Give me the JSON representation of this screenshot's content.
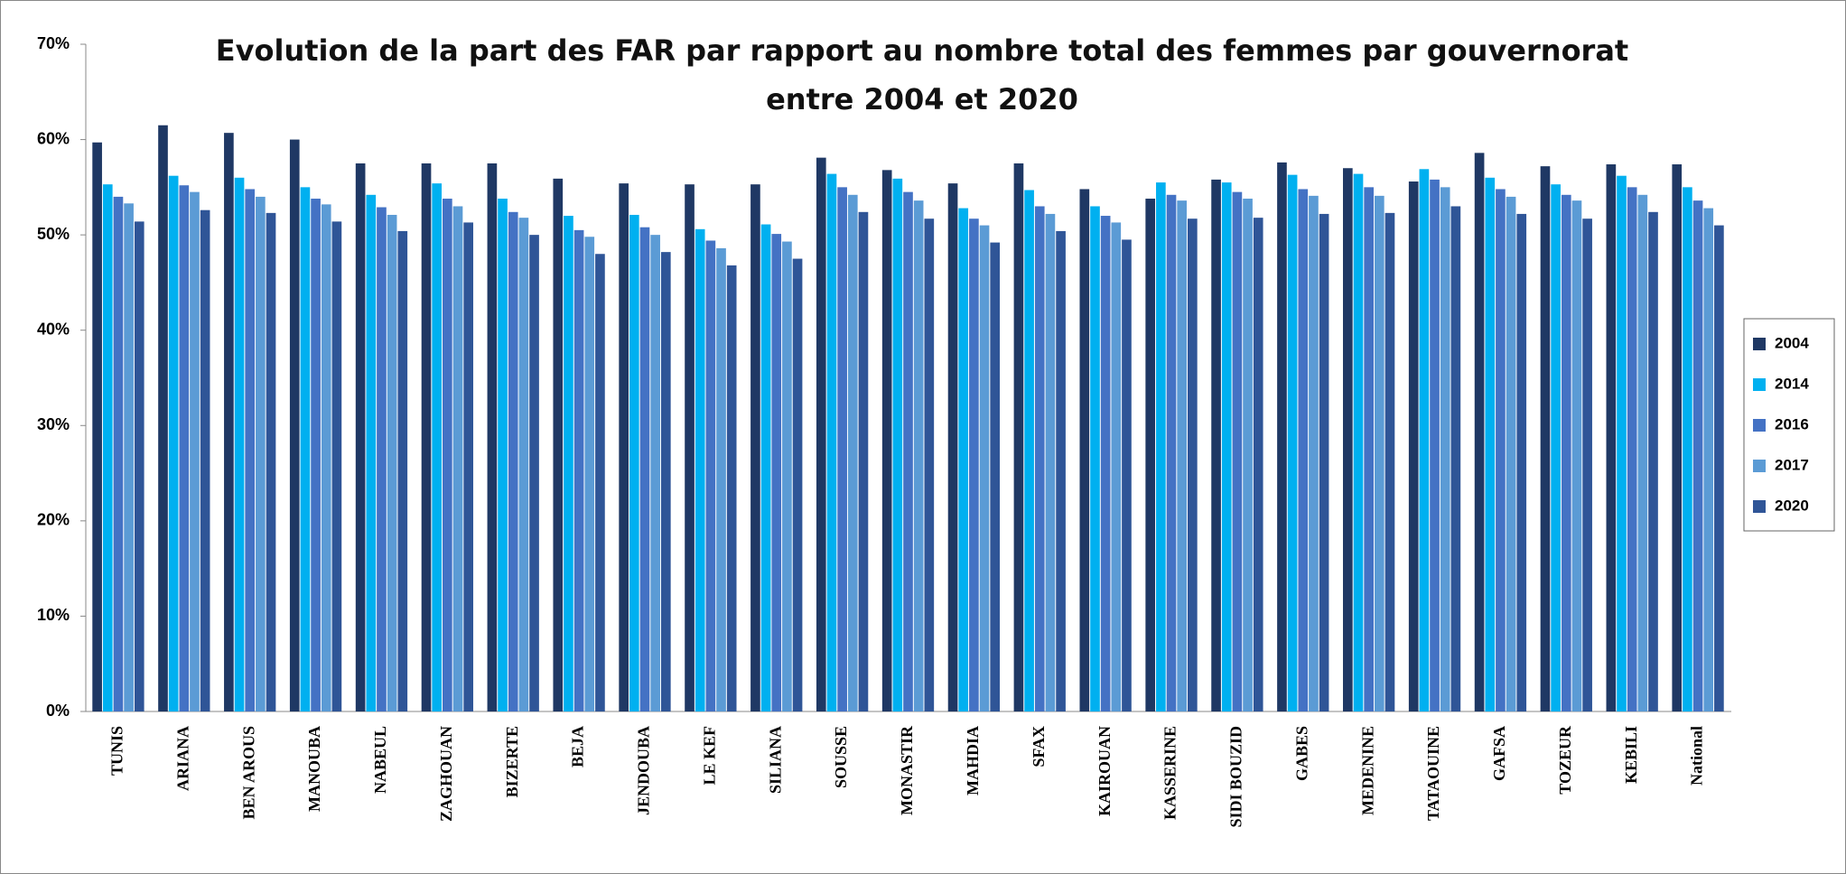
{
  "chart_data": {
    "type": "bar",
    "title": "Evolution de la part des FAR par rapport au nombre total des femmes par gouvernorat entre 2004 et 2020",
    "categories": [
      "TUNIS",
      "ARIANA",
      "BEN AROUS",
      "MANOUBA",
      "NABEUL",
      "ZAGHOUAN",
      "BIZERTE",
      "BEJA",
      "JENDOUBA",
      "LE KEF",
      "SILIANA",
      "SOUSSE",
      "MONASTIR",
      "MAHDIA",
      "SFAX",
      "KAIROUAN",
      "KASSERINE",
      "SIDI BOUZID",
      "GABES",
      "MEDENINE",
      "TATAOUINE",
      "GAFSA",
      "TOZEUR",
      "KEBILI",
      "National"
    ],
    "series": [
      {
        "name": "2004",
        "color": "#1f3864",
        "values": [
          59.7,
          61.5,
          60.7,
          60,
          57.5,
          57.5,
          57.5,
          55.9,
          55.4,
          55.3,
          55.3,
          58.1,
          56.8,
          55.4,
          57.5,
          54.8,
          53.8,
          55.8,
          57.6,
          57,
          55.6,
          58.6,
          57.2,
          57.4,
          57.4
        ]
      },
      {
        "name": "2014",
        "color": "#00b0f0",
        "values": [
          55.3,
          56.2,
          56,
          55,
          54.2,
          55.4,
          53.8,
          52,
          52.1,
          50.6,
          51.1,
          56.4,
          55.9,
          52.8,
          54.7,
          53,
          55.5,
          55.5,
          56.3,
          56.4,
          56.9,
          56,
          55.3,
          56.2,
          55
        ]
      },
      {
        "name": "2016",
        "color": "#4472c4",
        "values": [
          54,
          55.2,
          54.8,
          53.8,
          52.9,
          53.8,
          52.4,
          50.5,
          50.8,
          49.4,
          50.1,
          55,
          54.5,
          51.7,
          53,
          52,
          54.2,
          54.5,
          54.8,
          55,
          55.8,
          54.8,
          54.2,
          55,
          53.6
        ]
      },
      {
        "name": "2017",
        "color": "#5b9bd5",
        "values": [
          53.3,
          54.5,
          54,
          53.2,
          52.1,
          53,
          51.8,
          49.8,
          50,
          48.6,
          49.3,
          54.2,
          53.6,
          51,
          52.2,
          51.3,
          53.6,
          53.8,
          54.1,
          54.1,
          55,
          54,
          53.6,
          54.2,
          52.8
        ]
      },
      {
        "name": "2020",
        "color": "#2f5597",
        "values": [
          51.4,
          52.6,
          52.3,
          51.4,
          50.4,
          51.3,
          50,
          48,
          48.2,
          46.8,
          47.5,
          52.4,
          51.7,
          49.2,
          50.4,
          49.5,
          51.7,
          51.8,
          52.2,
          52.3,
          53,
          52.2,
          51.7,
          52.4,
          51
        ]
      }
    ],
    "ylim": [
      0,
      70
    ],
    "yticks": [
      {
        "value": 0,
        "label": "0%"
      },
      {
        "value": 10,
        "label": "10%"
      },
      {
        "value": 20,
        "label": "20%"
      },
      {
        "value": 30,
        "label": "30%"
      },
      {
        "value": 40,
        "label": "40%"
      },
      {
        "value": 50,
        "label": "50%"
      },
      {
        "value": 60,
        "label": "60%"
      },
      {
        "value": 70,
        "label": "70%"
      }
    ],
    "legend": "right"
  }
}
